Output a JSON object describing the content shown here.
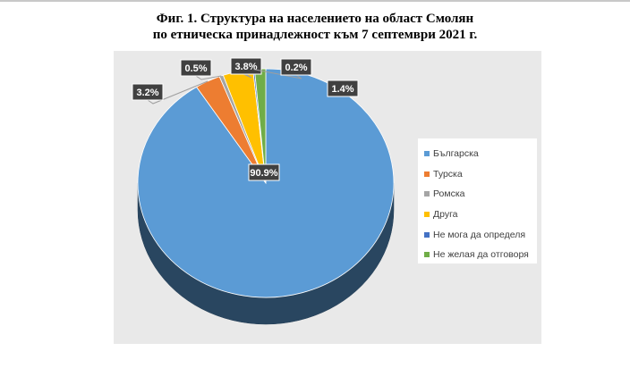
{
  "header": {
    "title_line1": "Фиг. 1. Структура на населението на област Смолян",
    "title_line2": "по етническа принадлежност към 7 септември 2021 г."
  },
  "chart_data": {
    "type": "pie",
    "title": "Фиг. 1. Структура на населението на област Смолян по етническа принадлежност към 7 септември 2021 г.",
    "three_d": true,
    "legend_position": "right",
    "slices": [
      {
        "label": "Българска",
        "value": 90.9,
        "value_label": "90.9%",
        "color": "#5b9bd5"
      },
      {
        "label": "Турска",
        "value": 3.2,
        "value_label": "3.2%",
        "color": "#ed7d31"
      },
      {
        "label": "Ромска",
        "value": 0.5,
        "value_label": "0.5%",
        "color": "#a5a5a5"
      },
      {
        "label": "Друга",
        "value": 3.8,
        "value_label": "3.8%",
        "color": "#ffc000"
      },
      {
        "label": "Не мога да определя",
        "value": 0.2,
        "value_label": "0.2%",
        "color": "#4472c4"
      },
      {
        "label": "Не желая да отговоря",
        "value": 1.4,
        "value_label": "1.4%",
        "color": "#70ad47"
      }
    ]
  }
}
